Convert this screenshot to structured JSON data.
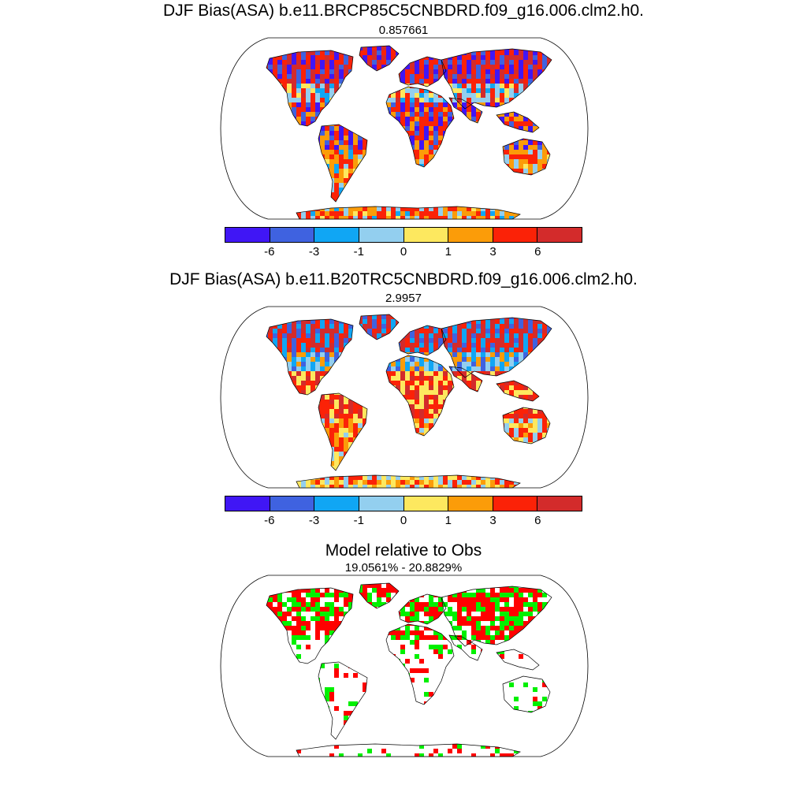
{
  "panels": [
    {
      "title": "DJF Bias(ASA) b.e11.BRCP85C5CNBDRD.f09_g16.006.clm2.h0.",
      "subtitle": "0.857661"
    },
    {
      "title": "DJF Bias(ASA) b.e11.B20TRC5CNBDRD.f09_g16.006.clm2.h0.",
      "subtitle": "2.9957"
    },
    {
      "title": "Model relative to Obs",
      "subtitle": "19.0561% - 20.8829%"
    }
  ],
  "colorbar": {
    "colors": [
      "#4016f5",
      "#3f62e0",
      "#10a6f4",
      "#93cfef",
      "#fde85f",
      "#fb9c09",
      "#fb2207",
      "#d32b2b"
    ],
    "tick_labels": [
      "-6",
      "-3",
      "-1",
      "0",
      "1",
      "3",
      "6"
    ]
  },
  "difference_colors": {
    "better": "#00f000",
    "worse": "#ff0000"
  },
  "ocean_color": "#ffffff",
  "land_outline_color": "#000000"
}
